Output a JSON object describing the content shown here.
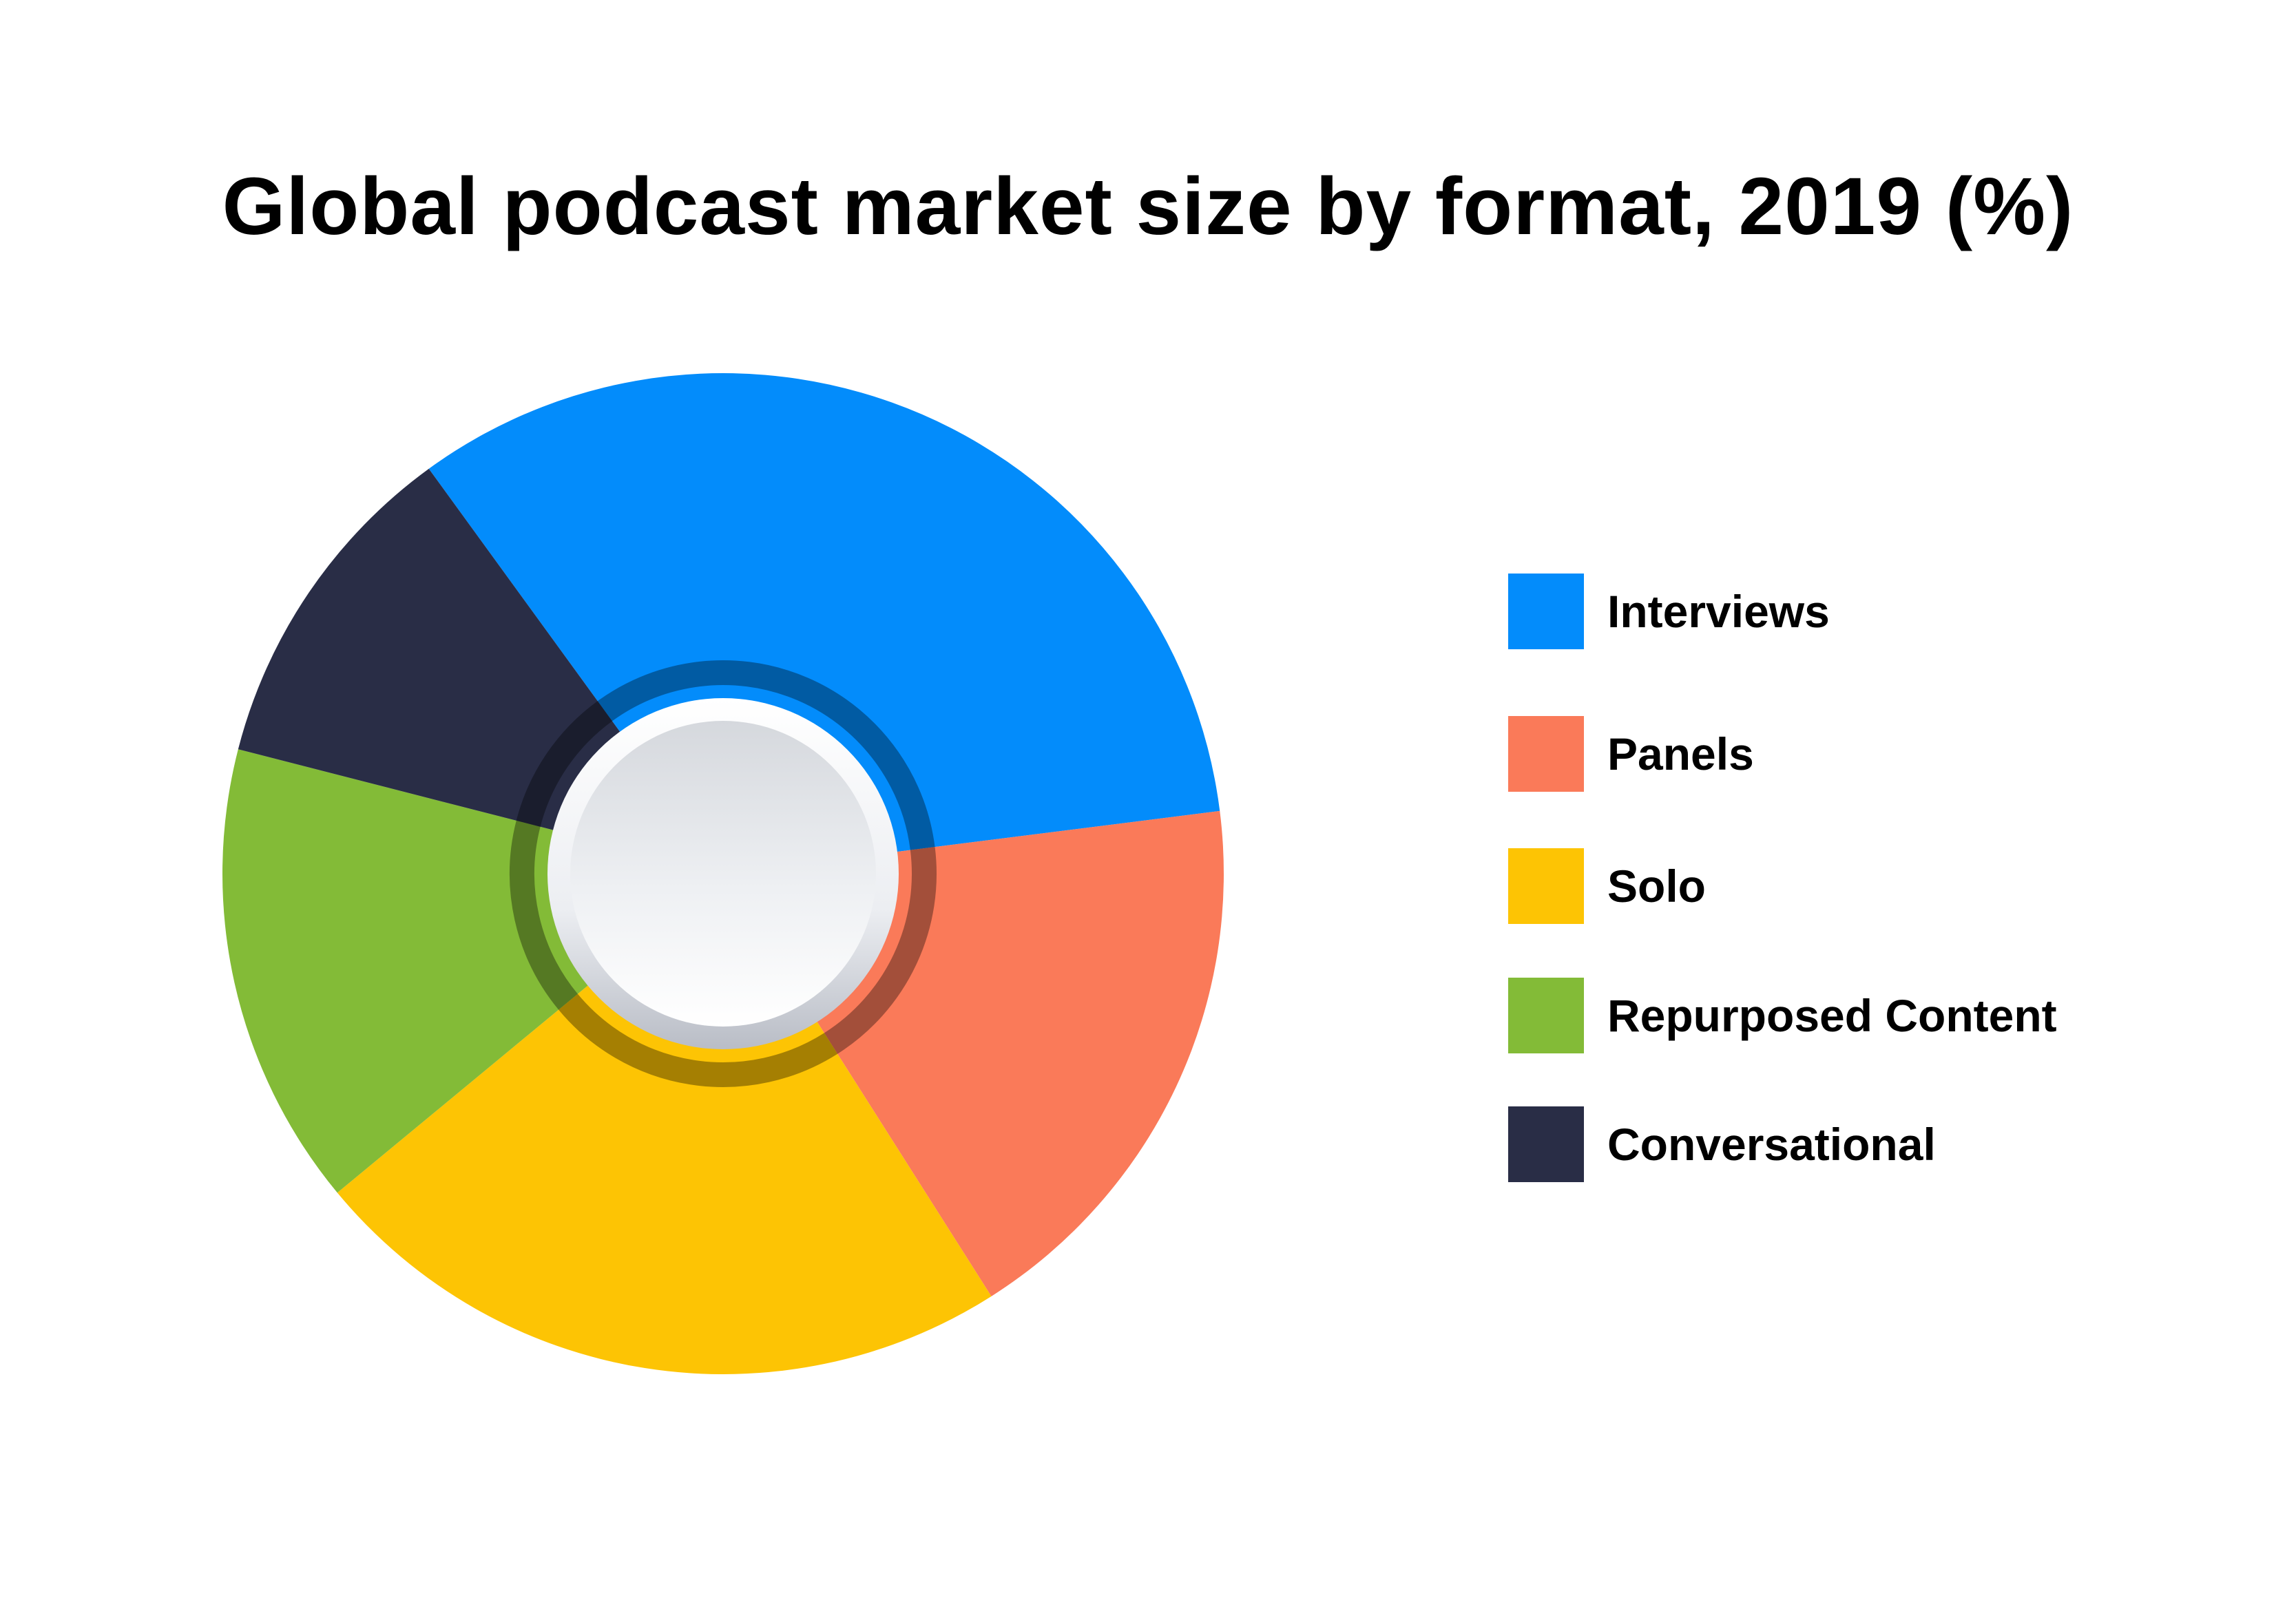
{
  "chart_data": {
    "type": "pie",
    "title": "Global podcast market size by format, 2019 (%)",
    "categories": [
      "Interviews",
      "Panels",
      "Solo",
      "Repurposed Content",
      "Conversational"
    ],
    "values": [
      33.0,
      18.0,
      23.0,
      15.0,
      11.0
    ],
    "colors": [
      "#038CFB",
      "#FA7A59",
      "#FDC404",
      "#83BB37",
      "#292D46"
    ],
    "legend_position": "right"
  }
}
